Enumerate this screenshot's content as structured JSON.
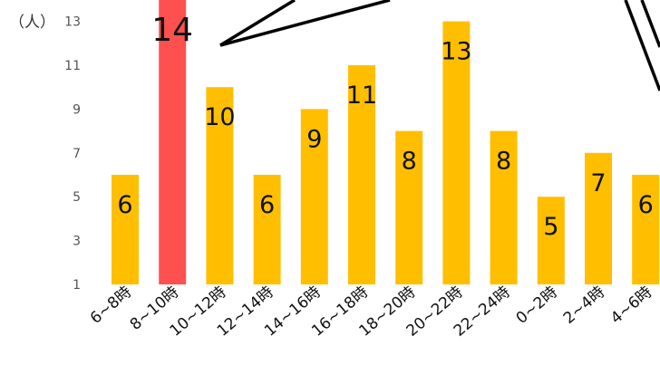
{
  "chart_data": {
    "type": "bar",
    "ylabel": "（人）",
    "yticks": [
      1,
      3,
      5,
      7,
      9,
      11,
      13
    ],
    "ylim": [
      1,
      14
    ],
    "categories": [
      "6~8時",
      "8~10時",
      "10~12時",
      "12~14時",
      "14~16時",
      "16~18時",
      "18~20時",
      "20~22時",
      "22~24時",
      "0~2時",
      "2~4時",
      "4~6時"
    ],
    "values": [
      6,
      14,
      10,
      6,
      9,
      11,
      8,
      13,
      8,
      5,
      7,
      6
    ],
    "data_labels": [
      "6",
      "14",
      "10",
      "6",
      "9",
      "11",
      "8",
      "13",
      "8",
      "5",
      "7",
      "6"
    ],
    "highlight_index": 1,
    "colors": {
      "bar": "#FFBF00",
      "highlight": "#FF5050",
      "text": "#111111",
      "axis": "#555555"
    },
    "callout": true
  }
}
